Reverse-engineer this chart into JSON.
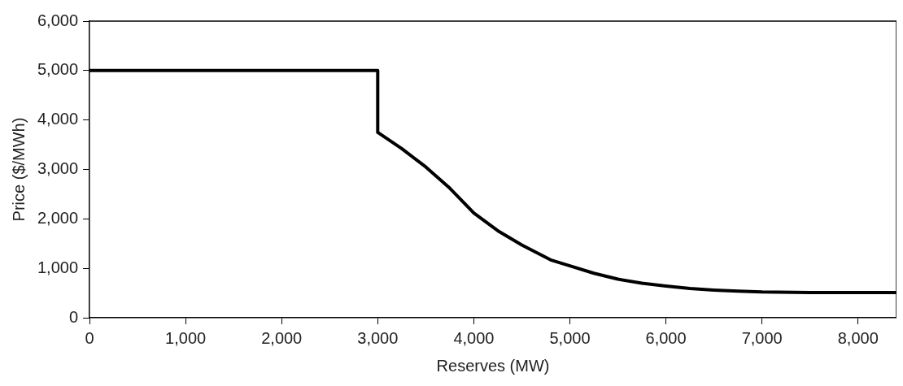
{
  "chart_data": {
    "type": "line",
    "xlabel": "Reserves (MW)",
    "ylabel": "Price ($/MWh)",
    "x": [
      0,
      3000,
      3000,
      3250,
      3500,
      3750,
      4000,
      4250,
      4500,
      4800,
      5000,
      5250,
      5500,
      5750,
      6000,
      6250,
      6500,
      6750,
      7000,
      7500,
      8000,
      8400
    ],
    "series": [
      {
        "color": "#000000",
        "values": [
          5000,
          5000,
          3750,
          3420,
          3050,
          2620,
          2120,
          1760,
          1470,
          1170,
          1050,
          900,
          780,
          700,
          640,
          590,
          560,
          540,
          520,
          510,
          510,
          510
        ]
      }
    ],
    "xlim": [
      0,
      8400
    ],
    "xticks": [
      {
        "value": 0,
        "label": "0"
      },
      {
        "value": 1000,
        "label": "1,000"
      },
      {
        "value": 2000,
        "label": "2,000"
      },
      {
        "value": 3000,
        "label": "3,000"
      },
      {
        "value": 4000,
        "label": "4,000"
      },
      {
        "value": 5000,
        "label": "5,000"
      },
      {
        "value": 6000,
        "label": "6,000"
      },
      {
        "value": 7000,
        "label": "7,000"
      },
      {
        "value": 8000,
        "label": "8,000"
      }
    ],
    "ylim": [
      0,
      6000
    ],
    "yticks": [
      {
        "value": 0,
        "label": "0"
      },
      {
        "value": 1000,
        "label": "1,000"
      },
      {
        "value": 2000,
        "label": "2,000"
      },
      {
        "value": 3000,
        "label": "3,000"
      },
      {
        "value": 4000,
        "label": "4,000"
      },
      {
        "value": 5000,
        "label": "5,000"
      },
      {
        "value": 6000,
        "label": "6,000"
      }
    ],
    "grid": false,
    "legend": false,
    "marker": "none",
    "line_style": "solid"
  }
}
